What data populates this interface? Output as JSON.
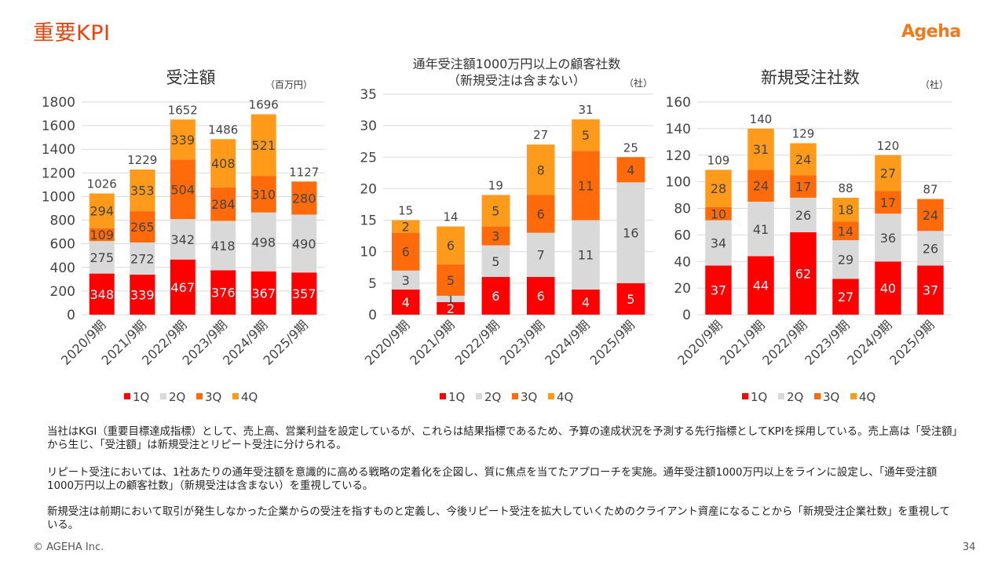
{
  "page": {
    "title": "重要KPI",
    "logo": "Ageha",
    "paragraphs": [
      "当社はKGI（重要目標達成指標）として、売上高、営業利益を設定しているが、これらは結果指標であるため、予算の達成状況を予測する先行指標としてKPIを採用している。売上高は「受注額」から生じ、「受注額」は新規受注とリピート受注に分けられる。",
      "リピート受注においては、1社あたりの通年受注額を意識的に高める戦略の定着化を企図し、質に焦点を当てたアプローチを実施。通年受注額1000万円以上をラインに設定し、「通年受注額1000万円以上の顧客社数」（新規受注は含まない）を重視している。",
      "新規受注は前期において取引が発生しなかった企業からの受注を指すものと定義し、今後リピート受注を拡大していくためのクライアント資産になることから「新規受注企業社数」を重視している。"
    ],
    "copyright": "© AGEHA Inc.",
    "page_number": "34"
  },
  "colors": {
    "q1": "#ff0000",
    "q2": "#d9d9d9",
    "q3": "#ff6a0a",
    "q4": "#ff9a1a",
    "title": "#e8440a",
    "grid": "#d9d9d9"
  },
  "chart_data": [
    {
      "type": "bar",
      "stacked": true,
      "title": "受注額",
      "unit": "（百万円）",
      "categories": [
        "2020/9期",
        "2021/9期",
        "2022/9期",
        "2023/9期",
        "2024/9期",
        "2025/9期"
      ],
      "series": [
        {
          "name": "1Q",
          "values": [
            348,
            339,
            467,
            376,
            367,
            357
          ]
        },
        {
          "name": "2Q",
          "values": [
            275,
            272,
            342,
            418,
            498,
            490
          ]
        },
        {
          "name": "3Q",
          "values": [
            109,
            265,
            504,
            284,
            310,
            280
          ]
        },
        {
          "name": "4Q",
          "values": [
            294,
            353,
            339,
            408,
            521,
            null
          ]
        }
      ],
      "totals": [
        1026,
        1229,
        1652,
        1486,
        1696,
        1127
      ],
      "ylim": [
        0,
        1800
      ],
      "yticks": [
        0,
        200,
        400,
        600,
        800,
        1000,
        1200,
        1400,
        1600,
        1800
      ],
      "grid": true,
      "legend": "bottom"
    },
    {
      "type": "bar",
      "stacked": true,
      "title": "通年受注額1000万円以上の顧客社数",
      "subtitle": "（新規受注は含まない）",
      "unit": "（社）",
      "categories": [
        "2020/9期",
        "2021/9期",
        "2022/9期",
        "2023/9期",
        "2024/9期",
        "2025/9期"
      ],
      "series": [
        {
          "name": "1Q",
          "values": [
            4,
            2,
            6,
            6,
            4,
            5
          ]
        },
        {
          "name": "2Q",
          "values": [
            3,
            1,
            5,
            7,
            11,
            16
          ]
        },
        {
          "name": "3Q",
          "values": [
            6,
            5,
            3,
            6,
            11,
            4
          ]
        },
        {
          "name": "4Q",
          "values": [
            2,
            6,
            5,
            8,
            5,
            null
          ]
        }
      ],
      "totals": [
        15,
        14,
        19,
        27,
        31,
        25
      ],
      "ylim": [
        0,
        35
      ],
      "yticks": [
        0,
        5,
        10,
        15,
        20,
        25,
        30,
        35
      ],
      "grid": true,
      "legend": "bottom"
    },
    {
      "type": "bar",
      "stacked": true,
      "title": "新規受注社数",
      "unit": "（社）",
      "categories": [
        "2020/9期",
        "2021/9期",
        "2022/9期",
        "2023/9期",
        "2024/9期",
        "2025/9期"
      ],
      "series": [
        {
          "name": "1Q",
          "values": [
            37,
            44,
            62,
            27,
            40,
            37
          ]
        },
        {
          "name": "2Q",
          "values": [
            34,
            41,
            26,
            29,
            36,
            26
          ]
        },
        {
          "name": "3Q",
          "values": [
            10,
            24,
            17,
            14,
            17,
            24
          ]
        },
        {
          "name": "4Q",
          "values": [
            28,
            31,
            24,
            18,
            27,
            null
          ]
        }
      ],
      "totals": [
        109,
        140,
        129,
        88,
        120,
        87
      ],
      "ylim": [
        0,
        160
      ],
      "yticks": [
        0,
        20,
        40,
        60,
        80,
        100,
        120,
        140,
        160
      ],
      "grid": true,
      "legend": "bottom"
    }
  ]
}
